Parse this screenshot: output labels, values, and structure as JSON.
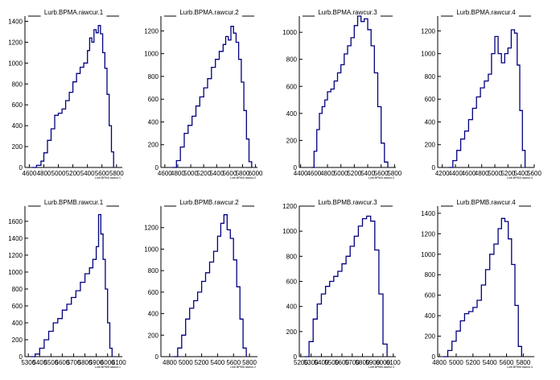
{
  "chart_data": [
    {
      "type": "bar",
      "title": "Lurb.BPMA.rawcur.1",
      "xlabel": "Lurb.BPMA.rawcur.1",
      "xlim": [
        4540,
        5880
      ],
      "ylim": [
        0,
        1450
      ],
      "xticks": [
        4600,
        4800,
        5000,
        5200,
        5400,
        5600,
        5800
      ],
      "yticks": [
        0,
        200,
        400,
        600,
        800,
        1000,
        1200,
        1400
      ],
      "x": [
        4640,
        4700,
        4760,
        4800,
        4850,
        4900,
        4950,
        5000,
        5050,
        5100,
        5150,
        5200,
        5250,
        5300,
        5350,
        5400,
        5430,
        5460,
        5490,
        5520,
        5550,
        5580,
        5610,
        5640,
        5670,
        5700,
        5730,
        5760
      ],
      "values": [
        0,
        20,
        60,
        140,
        260,
        370,
        500,
        520,
        560,
        640,
        720,
        820,
        900,
        960,
        1000,
        1120,
        1240,
        1200,
        1320,
        1290,
        1360,
        1280,
        1100,
        950,
        700,
        400,
        150,
        0
      ]
    },
    {
      "type": "bar",
      "title": "Lurb.BPMA.rawcur.2",
      "xlabel": "Lurb.BPMA.rawcur.2",
      "xlim": [
        4540,
        6030
      ],
      "ylim": [
        0,
        1330
      ],
      "xticks": [
        4600,
        4800,
        5000,
        5200,
        5400,
        5600,
        5800,
        6000
      ],
      "yticks": [
        0,
        200,
        400,
        600,
        800,
        1000,
        1200
      ],
      "x": [
        4720,
        4780,
        4840,
        4900,
        4960,
        5020,
        5080,
        5140,
        5200,
        5260,
        5320,
        5380,
        5440,
        5500,
        5540,
        5580,
        5620,
        5660,
        5700,
        5740,
        5780,
        5820,
        5860,
        5900,
        5940
      ],
      "values": [
        0,
        60,
        180,
        300,
        370,
        450,
        540,
        620,
        700,
        780,
        880,
        950,
        1020,
        1080,
        1150,
        1120,
        1240,
        1180,
        1100,
        950,
        750,
        500,
        250,
        50,
        0
      ]
    },
    {
      "type": "bar",
      "title": "Lurb.BPMA.rawcur.3",
      "xlabel": "Lurb.BPMA.rawcur.3",
      "xlim": [
        4380,
        5820
      ],
      "ylim": [
        0,
        1120
      ],
      "xticks": [
        4400,
        4600,
        4800,
        5000,
        5200,
        5400,
        5600,
        5800
      ],
      "yticks": [
        0,
        200,
        400,
        600,
        800,
        1000
      ],
      "x": [
        4560,
        4600,
        4640,
        4680,
        4720,
        4760,
        4800,
        4850,
        4900,
        4950,
        5000,
        5050,
        5100,
        5150,
        5200,
        5250,
        5300,
        5350,
        5400,
        5450,
        5500,
        5550,
        5600,
        5650,
        5700
      ],
      "values": [
        0,
        120,
        280,
        400,
        450,
        500,
        560,
        580,
        640,
        700,
        760,
        840,
        900,
        960,
        1050,
        1120,
        1080,
        1100,
        1020,
        900,
        700,
        450,
        180,
        40,
        0
      ]
    },
    {
      "type": "bar",
      "title": "Lurb.BPMA.rawcur.4",
      "xlabel": "Lurb.BPMA.rawcur.4",
      "xlim": [
        4130,
        5600
      ],
      "ylim": [
        0,
        1330
      ],
      "xticks": [
        4200,
        4400,
        4600,
        4800,
        5000,
        5200,
        5400,
        5600
      ],
      "yticks": [
        0,
        200,
        400,
        600,
        800,
        1000,
        1200
      ],
      "x": [
        4300,
        4360,
        4420,
        4480,
        4540,
        4600,
        4660,
        4720,
        4780,
        4840,
        4900,
        4950,
        5000,
        5050,
        5100,
        5150,
        5200,
        5250,
        5300,
        5340,
        5380,
        5420,
        5460
      ],
      "values": [
        0,
        60,
        150,
        250,
        320,
        420,
        520,
        620,
        700,
        760,
        820,
        1000,
        1150,
        1000,
        920,
        1000,
        1050,
        1210,
        1180,
        900,
        500,
        150,
        0
      ]
    },
    {
      "type": "bar",
      "title": "Lurb.BPMB.rawcur.1",
      "xlabel": "Lurb.BPMB.rawcur.1",
      "xlim": [
        5270,
        6130
      ],
      "ylim": [
        0,
        1780
      ],
      "xticks": [
        5300,
        5400,
        5500,
        5600,
        5700,
        5800,
        5900,
        6000,
        6100
      ],
      "yticks": [
        0,
        200,
        400,
        600,
        800,
        1000,
        1200,
        1400,
        1600
      ],
      "x": [
        5320,
        5360,
        5400,
        5440,
        5480,
        5520,
        5560,
        5600,
        5640,
        5680,
        5720,
        5760,
        5800,
        5840,
        5870,
        5900,
        5920,
        5940,
        5960,
        5980,
        6000,
        6020,
        6040
      ],
      "values": [
        0,
        30,
        100,
        200,
        300,
        400,
        450,
        550,
        620,
        700,
        780,
        880,
        980,
        1050,
        1150,
        1300,
        1680,
        1450,
        1150,
        800,
        400,
        100,
        0
      ]
    },
    {
      "type": "bar",
      "title": "Lurb.BPMB.rawcur.2",
      "xlabel": "Lurb.BPMB.rawcur.2",
      "xlim": [
        4690,
        5900
      ],
      "ylim": [
        0,
        1400
      ],
      "xticks": [
        4800,
        5000,
        5200,
        5400,
        5600,
        5800
      ],
      "yticks": [
        0,
        200,
        400,
        600,
        800,
        1000,
        1200
      ],
      "x": [
        4850,
        4900,
        4950,
        5000,
        5050,
        5100,
        5150,
        5200,
        5250,
        5300,
        5350,
        5400,
        5440,
        5480,
        5520,
        5560,
        5600,
        5640,
        5680,
        5720,
        5760
      ],
      "values": [
        0,
        80,
        200,
        350,
        450,
        520,
        600,
        700,
        780,
        880,
        980,
        1120,
        1240,
        1320,
        1180,
        1100,
        900,
        650,
        350,
        80,
        0
      ]
    },
    {
      "type": "bar",
      "title": "Lurb.BPMB.rawcur.3",
      "xlabel": "Lurb.BPMB.rawcur.3",
      "xlim": [
        5185,
        6125
      ],
      "ylim": [
        0,
        1200
      ],
      "xticks": [
        5200,
        5300,
        5400,
        5500,
        5600,
        5700,
        5800,
        5900,
        6000,
        6100
      ],
      "yticks": [
        0,
        200,
        400,
        600,
        800,
        1000,
        1200
      ],
      "x": [
        5240,
        5280,
        5320,
        5360,
        5400,
        5440,
        5480,
        5520,
        5560,
        5600,
        5640,
        5680,
        5720,
        5760,
        5800,
        5840,
        5880,
        5920,
        5960,
        6000,
        6040
      ],
      "values": [
        0,
        120,
        300,
        420,
        500,
        560,
        600,
        640,
        680,
        740,
        800,
        880,
        960,
        1040,
        1100,
        1120,
        1080,
        850,
        500,
        100,
        0
      ]
    },
    {
      "type": "bar",
      "title": "Lurb.BPMB.rawcur.4",
      "xlabel": "Lurb.BPMB.rawcur.4",
      "xlim": [
        4780,
        5930
      ],
      "ylim": [
        0,
        1470
      ],
      "xticks": [
        4800,
        5000,
        5200,
        5400,
        5600,
        5800
      ],
      "yticks": [
        0,
        200,
        400,
        600,
        800,
        1000,
        1200,
        1400
      ],
      "x": [
        4850,
        4900,
        4950,
        5000,
        5050,
        5100,
        5150,
        5200,
        5250,
        5300,
        5350,
        5400,
        5450,
        5500,
        5540,
        5580,
        5620,
        5660,
        5700,
        5740,
        5780
      ],
      "values": [
        0,
        60,
        150,
        250,
        350,
        420,
        440,
        480,
        550,
        700,
        850,
        1000,
        1100,
        1250,
        1350,
        1320,
        1150,
        900,
        500,
        100,
        0
      ]
    }
  ]
}
